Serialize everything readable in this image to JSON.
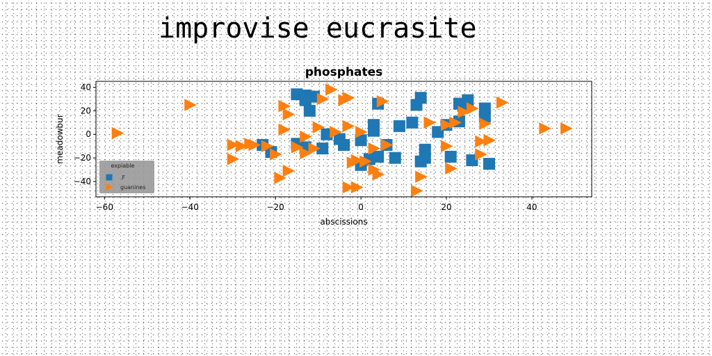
{
  "header": {
    "title": "improvise eucrasite"
  },
  "colors": {
    "series_a": "#1f77b4",
    "series_b": "#ff7f0e",
    "legend_bg": "#999999"
  },
  "chart_data": {
    "type": "scatter",
    "title": "phosphates",
    "xlabel": "abscissions",
    "ylabel": "meadowbur",
    "xlim": [
      -62,
      54
    ],
    "ylim": [
      -53,
      45
    ],
    "xticks": [
      -60,
      -40,
      -20,
      0,
      20,
      40
    ],
    "yticks": [
      -40,
      -20,
      0,
      20,
      40
    ],
    "grid": false,
    "legend": {
      "title": "expiable",
      "position": "lower-left"
    },
    "series": [
      {
        "name": ".F",
        "marker": "square",
        "points": [
          [
            -15,
            34
          ],
          [
            -13,
            33
          ],
          [
            -11,
            32
          ],
          [
            -13,
            29
          ],
          [
            -12,
            20
          ],
          [
            -13,
            31
          ],
          [
            -23,
            -9
          ],
          [
            -21,
            -15
          ],
          [
            -15,
            -8
          ],
          [
            -13,
            -11
          ],
          [
            -9,
            -12
          ],
          [
            -8,
            0
          ],
          [
            -5,
            -4
          ],
          [
            -4,
            -9
          ],
          [
            0,
            -5
          ],
          [
            0,
            -26
          ],
          [
            2,
            -21
          ],
          [
            3,
            3
          ],
          [
            3,
            8
          ],
          [
            4,
            26
          ],
          [
            4,
            -19
          ],
          [
            6,
            -9
          ],
          [
            8,
            -20
          ],
          [
            9,
            7
          ],
          [
            12,
            10
          ],
          [
            13,
            25
          ],
          [
            14,
            31
          ],
          [
            14,
            -23
          ],
          [
            15,
            -13
          ],
          [
            15,
            -20
          ],
          [
            18,
            2
          ],
          [
            20,
            8
          ],
          [
            21,
            -19
          ],
          [
            23,
            11
          ],
          [
            23,
            26
          ],
          [
            24,
            24
          ],
          [
            25,
            29
          ],
          [
            26,
            -22
          ],
          [
            29,
            22
          ],
          [
            29,
            15
          ],
          [
            30,
            -25
          ]
        ]
      },
      {
        "name": "guanines",
        "marker": "triangle-right",
        "points": [
          [
            -57,
            1
          ],
          [
            -40,
            25
          ],
          [
            -30,
            -9
          ],
          [
            -30,
            -21
          ],
          [
            -28,
            -10
          ],
          [
            -26,
            -8
          ],
          [
            -25,
            -9
          ],
          [
            -22,
            -10
          ],
          [
            -20,
            -17
          ],
          [
            -19,
            -37
          ],
          [
            -18,
            24
          ],
          [
            -18,
            4
          ],
          [
            -17,
            17
          ],
          [
            -17,
            -31
          ],
          [
            -15,
            -11
          ],
          [
            -13,
            -16
          ],
          [
            -13,
            -2
          ],
          [
            -11,
            -12
          ],
          [
            -10,
            6
          ],
          [
            -9,
            30
          ],
          [
            -7,
            38
          ],
          [
            -6,
            2
          ],
          [
            -4,
            29
          ],
          [
            -3,
            31
          ],
          [
            -3,
            7
          ],
          [
            -2,
            -24
          ],
          [
            -3,
            -45
          ],
          [
            -1,
            -45
          ],
          [
            -1,
            -22
          ],
          [
            0,
            2
          ],
          [
            1,
            -23
          ],
          [
            3,
            -12
          ],
          [
            3,
            -30
          ],
          [
            4,
            -34
          ],
          [
            5,
            28
          ],
          [
            6,
            -9
          ],
          [
            13,
            -48
          ],
          [
            14,
            -36
          ],
          [
            16,
            10
          ],
          [
            20,
            -10
          ],
          [
            20,
            8
          ],
          [
            21,
            -29
          ],
          [
            22,
            10
          ],
          [
            24,
            19
          ],
          [
            26,
            22
          ],
          [
            28,
            -17
          ],
          [
            28,
            -6
          ],
          [
            29,
            9
          ],
          [
            30,
            -5
          ],
          [
            33,
            27
          ],
          [
            43,
            5
          ],
          [
            48,
            5
          ]
        ]
      }
    ]
  }
}
